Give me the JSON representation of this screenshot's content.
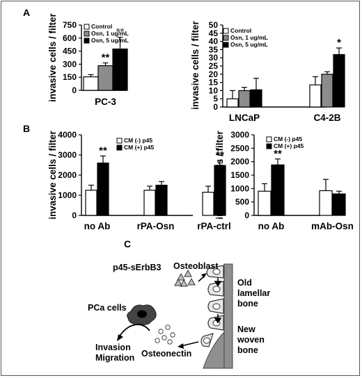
{
  "panels": {
    "a": "A",
    "b": "B",
    "c": "C"
  },
  "chart_data": [
    {
      "type": "bar",
      "panel": "A",
      "ylabel": "invasive cells / filter",
      "ylim": [
        0,
        750
      ],
      "yticks": [
        "0",
        "150",
        "300",
        "450",
        "600",
        "750"
      ],
      "categories": [
        "PC-3"
      ],
      "series": [
        {
          "name": "Control",
          "color": "#ffffff",
          "values": [
            155
          ],
          "errors": [
            25
          ]
        },
        {
          "name": "Osn, 1 ug/mL",
          "color": "#8c8c8c",
          "values": [
            283
          ],
          "errors": [
            32
          ]
        },
        {
          "name": "Osn, 5 ug/mL",
          "color": "#000000",
          "values": [
            475
          ],
          "errors": [
            135
          ]
        }
      ],
      "annotations": [
        {
          "series": 1,
          "category": 0,
          "text": "**",
          "color": "#000000"
        },
        {
          "series": 2,
          "category": 0,
          "text": "**",
          "color": "#666666"
        }
      ],
      "legend": "top-left"
    },
    {
      "type": "bar",
      "panel": "A",
      "ylabel": "invasive cells / filter",
      "ylim": [
        0,
        50
      ],
      "yticks": [
        "0",
        "5",
        "10",
        "15",
        "20",
        "25",
        "30",
        "35",
        "40",
        "45",
        "50"
      ],
      "categories": [
        "LNCaP",
        "C4-2B"
      ],
      "series": [
        {
          "name": "Control",
          "color": "#ffffff",
          "values": [
            5,
            13.5
          ],
          "errors": [
            5,
            5
          ]
        },
        {
          "name": "Osn, 1 ug/mL",
          "color": "#8c8c8c",
          "values": [
            10,
            20
          ],
          "errors": [
            2,
            1.5
          ]
        },
        {
          "name": "Osn, 5 ug/mL",
          "color": "#000000",
          "values": [
            10.5,
            32
          ],
          "errors": [
            7,
            4
          ]
        }
      ],
      "annotations": [
        {
          "series": 2,
          "category": 1,
          "text": "*",
          "color": "#000000"
        }
      ],
      "legend": "top-left"
    },
    {
      "type": "bar",
      "panel": "B",
      "ylabel": "invasive cells / filter",
      "ylim": [
        0,
        4000
      ],
      "yticks": [
        "0",
        "1000",
        "2000",
        "3000",
        "4000"
      ],
      "categories": [
        "no Ab",
        "rPA-Osn",
        "rPA-ctrl"
      ],
      "series": [
        {
          "name": "CM (-) p45",
          "color": "#ffffff",
          "values": [
            1250,
            1250,
            1150
          ],
          "errors": [
            250,
            200,
            300
          ]
        },
        {
          "name": "CM (+) p45",
          "color": "#000000",
          "values": [
            2600,
            1500,
            2480
          ],
          "errors": [
            350,
            180,
            250
          ]
        }
      ],
      "annotations": [
        {
          "series": 1,
          "category": 0,
          "text": "**",
          "color": "#000000"
        },
        {
          "series": 1,
          "category": 2,
          "text": "**",
          "color": "#000000"
        }
      ],
      "legend": "top-center"
    },
    {
      "type": "bar",
      "panel": "B",
      "ylabel": "invasive cells / filter",
      "ylim": [
        0,
        3000
      ],
      "yticks": [
        "0",
        "500",
        "1000",
        "1500",
        "2000",
        "2500",
        "3000"
      ],
      "categories": [
        "no Ab",
        "mAb-Osn"
      ],
      "series": [
        {
          "name": "CM (-) p45",
          "color": "#ffffff",
          "values": [
            900,
            920
          ],
          "errors": [
            280,
            420
          ]
        },
        {
          "name": "CM (+) p45",
          "color": "#000000",
          "values": [
            1880,
            800
          ],
          "errors": [
            220,
            100
          ]
        }
      ],
      "annotations": [
        {
          "series": 1,
          "category": 0,
          "text": "**",
          "color": "#000000"
        }
      ],
      "legend": "top-right"
    }
  ],
  "diagram": {
    "osteoblast": "Osteoblast",
    "p45": "p45-sErbB3",
    "old_bone": [
      "Old",
      "lamellar",
      "bone"
    ],
    "new_bone": [
      "New",
      "woven",
      "bone"
    ],
    "pca_cells": "PCa cells",
    "osteonectin": "Osteonectin",
    "outcome": [
      "Invasion",
      "Migration"
    ]
  }
}
